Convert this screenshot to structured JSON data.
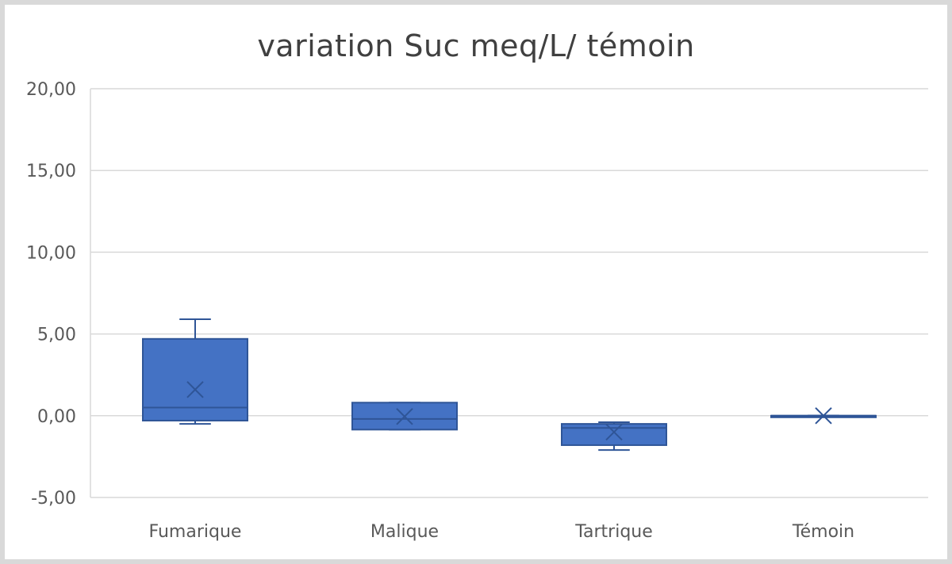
{
  "chart_data": {
    "type": "boxplot",
    "title": "variation Suc meq/L/  témoin",
    "xlabel": "",
    "ylabel": "",
    "ylim": [
      -5,
      20
    ],
    "yticks": [
      -5,
      0,
      5,
      10,
      15,
      20
    ],
    "ytick_labels": [
      "-5,00",
      "0,00",
      "5,00",
      "10,00",
      "15,00",
      "20,00"
    ],
    "categories": [
      "Fumarique",
      "Malique",
      "Tartrique",
      "Témoin"
    ],
    "boxes": [
      {
        "category": "Fumarique",
        "min": -0.5,
        "q1": -0.3,
        "median": 0.5,
        "q3": 4.7,
        "max": 5.9,
        "mean": 1.6
      },
      {
        "category": "Malique",
        "min": -0.85,
        "q1": -0.85,
        "median": -0.2,
        "q3": 0.8,
        "max": 0.8,
        "mean": -0.05
      },
      {
        "category": "Tartrique",
        "min": -2.1,
        "q1": -1.8,
        "median": -0.75,
        "q3": -0.5,
        "max": -0.4,
        "mean": -1.0
      },
      {
        "category": "Témoin",
        "min": 0.0,
        "q1": 0.0,
        "median": 0.0,
        "q3": 0.0,
        "max": 0.0,
        "mean": 0.0
      }
    ],
    "grid": true,
    "legend": "none",
    "colors": {
      "box_fill": "#4472c4",
      "box_stroke": "#2f5597",
      "grid": "#d9d9d9",
      "axis": "#d9d9d9"
    }
  }
}
